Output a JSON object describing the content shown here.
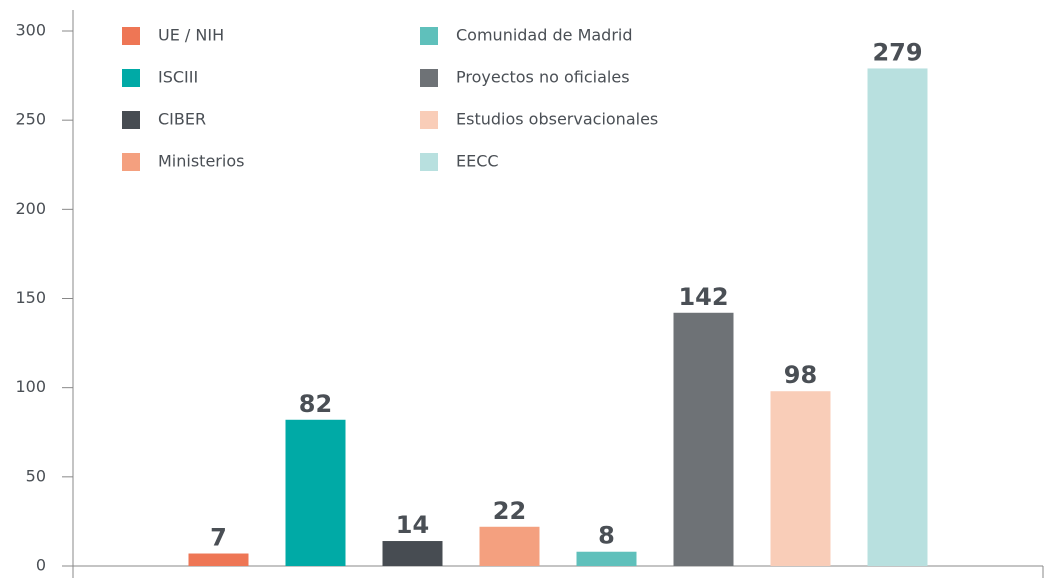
{
  "chart_data": {
    "type": "bar",
    "series": [
      {
        "name": "UE / NIH",
        "color": "#ee7655",
        "values": [
          7
        ]
      },
      {
        "name": "ISCIII",
        "color": "#00aaa6",
        "values": [
          82
        ]
      },
      {
        "name": "CIBER",
        "color": "#474c52",
        "values": [
          14
        ]
      },
      {
        "name": "Ministerios",
        "color": "#f4a07f",
        "values": [
          22
        ]
      },
      {
        "name": "Comunidad de Madrid",
        "color": "#5fc0bb",
        "values": [
          8
        ]
      },
      {
        "name": "Proyectos no oficiales",
        "color": "#6e7276",
        "values": [
          142
        ]
      },
      {
        "name": "Estudios observacionales",
        "color": "#f9cdb8",
        "values": [
          98
        ]
      },
      {
        "name": "EECC",
        "color": "#b8e0df",
        "values": [
          279
        ]
      }
    ],
    "ylim": [
      0,
      300
    ],
    "yticks": [
      0,
      50,
      100,
      150,
      200,
      250,
      300
    ],
    "grid": false
  }
}
